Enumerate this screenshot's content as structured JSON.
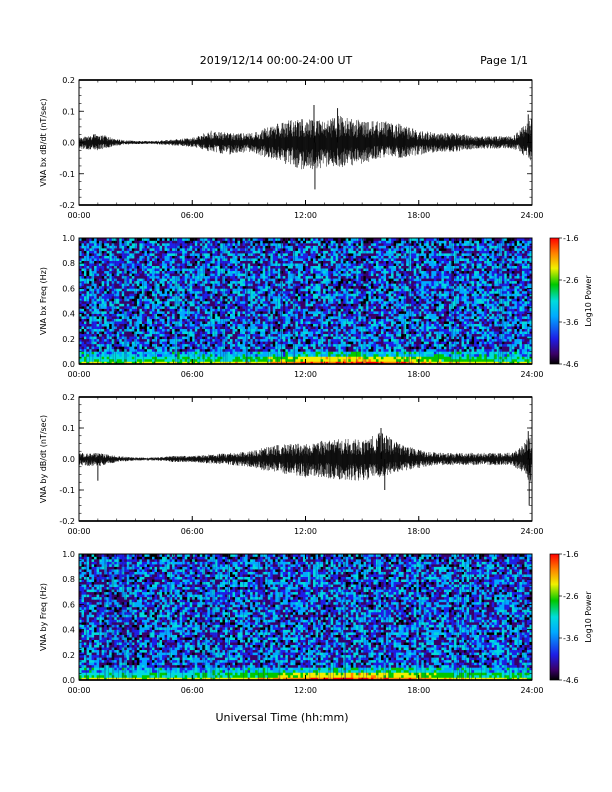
{
  "header": {
    "title": "2019/12/14  00:00-24:00 UT",
    "page": "Page 1/1"
  },
  "x_axis": {
    "title": "Universal Time (hh:mm)",
    "ticks": [
      "00:00",
      "06:00",
      "12:00",
      "18:00",
      "24:00"
    ]
  },
  "colors": {
    "trace": "#000000",
    "colormap": [
      "#000000",
      "#3a0066",
      "#1e1ee6",
      "#00aaff",
      "#00dcdc",
      "#00c800",
      "#f0f000",
      "#ff8000",
      "#ff0000"
    ]
  },
  "chart_data": [
    {
      "type": "line",
      "ylabel": "VNA bx dB/dt (nT/sec)",
      "yticks": [
        "0.2",
        "0.1",
        "0.0",
        "-0.1",
        "-0.2"
      ],
      "ylim": [
        -0.2,
        0.2
      ],
      "xlim_hours": [
        0,
        24
      ],
      "grid": false,
      "x_hours": [
        0,
        1,
        2,
        3,
        4,
        5,
        6,
        7,
        8,
        9,
        10,
        11,
        12,
        13,
        14,
        15,
        16,
        17,
        18,
        19,
        20,
        21,
        22,
        23,
        24
      ],
      "envelope_upper": [
        0.015,
        0.03,
        0.01,
        0.005,
        0.005,
        0.01,
        0.015,
        0.04,
        0.03,
        0.03,
        0.05,
        0.07,
        0.08,
        0.07,
        0.09,
        0.07,
        0.07,
        0.06,
        0.04,
        0.03,
        0.03,
        0.02,
        0.02,
        0.02,
        0.08
      ],
      "envelope_lower": [
        -0.02,
        -0.025,
        -0.01,
        -0.005,
        -0.005,
        -0.01,
        -0.015,
        -0.03,
        -0.04,
        -0.03,
        -0.05,
        -0.07,
        -0.09,
        -0.08,
        -0.08,
        -0.07,
        -0.05,
        -0.05,
        -0.04,
        -0.03,
        -0.03,
        -0.02,
        -0.02,
        -0.02,
        -0.06
      ],
      "spikes": [
        {
          "x": 12.45,
          "y": 0.12
        },
        {
          "x": 12.5,
          "y": -0.15
        },
        {
          "x": 13.7,
          "y": 0.11
        },
        {
          "x": 23.8,
          "y": 0.09
        }
      ]
    },
    {
      "type": "heatmap",
      "ylabel": "VNA bx Freq (Hz)",
      "yticks": [
        "1.0",
        "0.8",
        "0.6",
        "0.4",
        "0.2",
        "0.0"
      ],
      "ylim": [
        0.0,
        1.0
      ],
      "xlim_hours": [
        0,
        24
      ],
      "colorbar": {
        "label": "Log10 Power",
        "ticks": [
          "-1.6",
          "-2.6",
          "-3.6",
          "-4.6"
        ],
        "range": [
          -4.6,
          -1.6
        ]
      }
    },
    {
      "type": "line",
      "ylabel": "VNA by dB/dt (nT/sec)",
      "yticks": [
        "0.2",
        "0.1",
        "0.0",
        "-0.1",
        "-0.2"
      ],
      "ylim": [
        -0.2,
        0.2
      ],
      "xlim_hours": [
        0,
        24
      ],
      "grid": false,
      "x_hours": [
        0,
        1,
        2,
        3,
        4,
        5,
        6,
        7,
        8,
        9,
        10,
        11,
        12,
        13,
        14,
        15,
        16,
        17,
        18,
        19,
        20,
        21,
        22,
        23,
        24
      ],
      "envelope_upper": [
        0.02,
        0.02,
        0.01,
        0.005,
        0.005,
        0.01,
        0.01,
        0.015,
        0.02,
        0.025,
        0.04,
        0.05,
        0.05,
        0.06,
        0.07,
        0.06,
        0.09,
        0.05,
        0.03,
        0.02,
        0.02,
        0.02,
        0.02,
        0.02,
        0.08
      ],
      "envelope_lower": [
        -0.02,
        -0.025,
        -0.01,
        -0.005,
        -0.005,
        -0.01,
        -0.01,
        -0.015,
        -0.02,
        -0.025,
        -0.04,
        -0.05,
        -0.06,
        -0.06,
        -0.07,
        -0.07,
        -0.06,
        -0.04,
        -0.03,
        -0.02,
        -0.02,
        -0.02,
        -0.02,
        -0.02,
        -0.08
      ],
      "spikes": [
        {
          "x": 1.0,
          "y": -0.07
        },
        {
          "x": 16.0,
          "y": 0.1
        },
        {
          "x": 16.2,
          "y": -0.1
        },
        {
          "x": 23.85,
          "y": -0.15
        },
        {
          "x": 23.8,
          "y": 0.09
        }
      ]
    },
    {
      "type": "heatmap",
      "ylabel": "VNA by Freq (Hz)",
      "yticks": [
        "1.0",
        "0.8",
        "0.6",
        "0.4",
        "0.2",
        "0.0"
      ],
      "ylim": [
        0.0,
        1.0
      ],
      "xlim_hours": [
        0,
        24
      ],
      "colorbar": {
        "label": "Log10 Power",
        "ticks": [
          "-1.6",
          "-2.6",
          "-3.6",
          "-4.6"
        ],
        "range": [
          -4.6,
          -1.6
        ]
      }
    }
  ]
}
